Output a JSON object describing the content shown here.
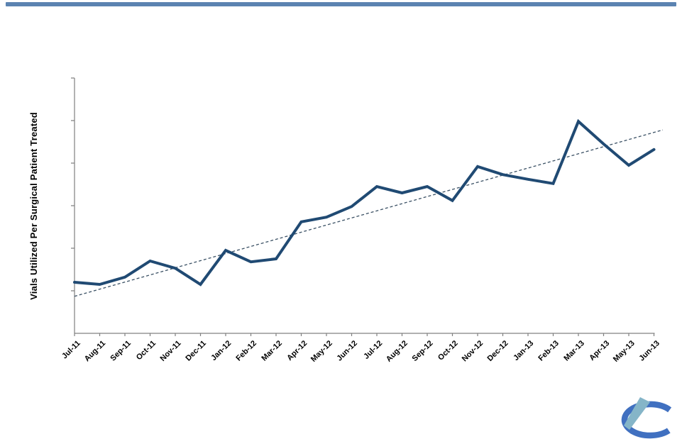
{
  "page": {
    "background": "#ffffff",
    "top_bar_color": "#5b83b1"
  },
  "chart_data": {
    "type": "line",
    "title": "",
    "xlabel": "",
    "ylabel": "Vials Utilized Per Surgical Patient Treated",
    "categories": [
      "Jul-11",
      "Aug-11",
      "Sep-11",
      "Oct-11",
      "Nov-11",
      "Dec-11",
      "Jan-12",
      "Feb-12",
      "Mar-12",
      "Apr-12",
      "May-12",
      "Jun-12",
      "Jul-12",
      "Aug-12",
      "Sep-12",
      "Oct-12",
      "Nov-12",
      "Dec-12",
      "Jan-13",
      "Feb-13",
      "Mar-13",
      "Apr-13",
      "May-13",
      "Jun-13"
    ],
    "series": [
      {
        "name": "Vials utilized per surgical patient treated",
        "color": "#204a73",
        "line_width": 4,
        "values": [
          1.2,
          1.15,
          1.32,
          1.7,
          1.53,
          1.15,
          1.95,
          1.68,
          1.75,
          2.62,
          2.73,
          2.98,
          3.45,
          3.3,
          3.45,
          3.12,
          3.92,
          3.73,
          3.62,
          3.52,
          4.98,
          4.45,
          3.95,
          4.32
        ]
      }
    ],
    "trendline": {
      "style": "dashed",
      "color": "#3a5064",
      "index_start": 0,
      "index_end": 23.35,
      "value_start": 0.87,
      "value_end": 4.78
    },
    "ylim": [
      0,
      6
    ],
    "y_tick_values": [
      1,
      2,
      3,
      4,
      5,
      6
    ],
    "y_tick_labels_visible": false,
    "x_label_rotation_deg": -45,
    "grid": false,
    "legend_position": "none",
    "axis_color": "#808080",
    "label_color": "#000000"
  },
  "logo": {
    "name": "c-swoosh-logo",
    "c_color": "#4070c0",
    "wedge_color": "#85b5c8"
  }
}
